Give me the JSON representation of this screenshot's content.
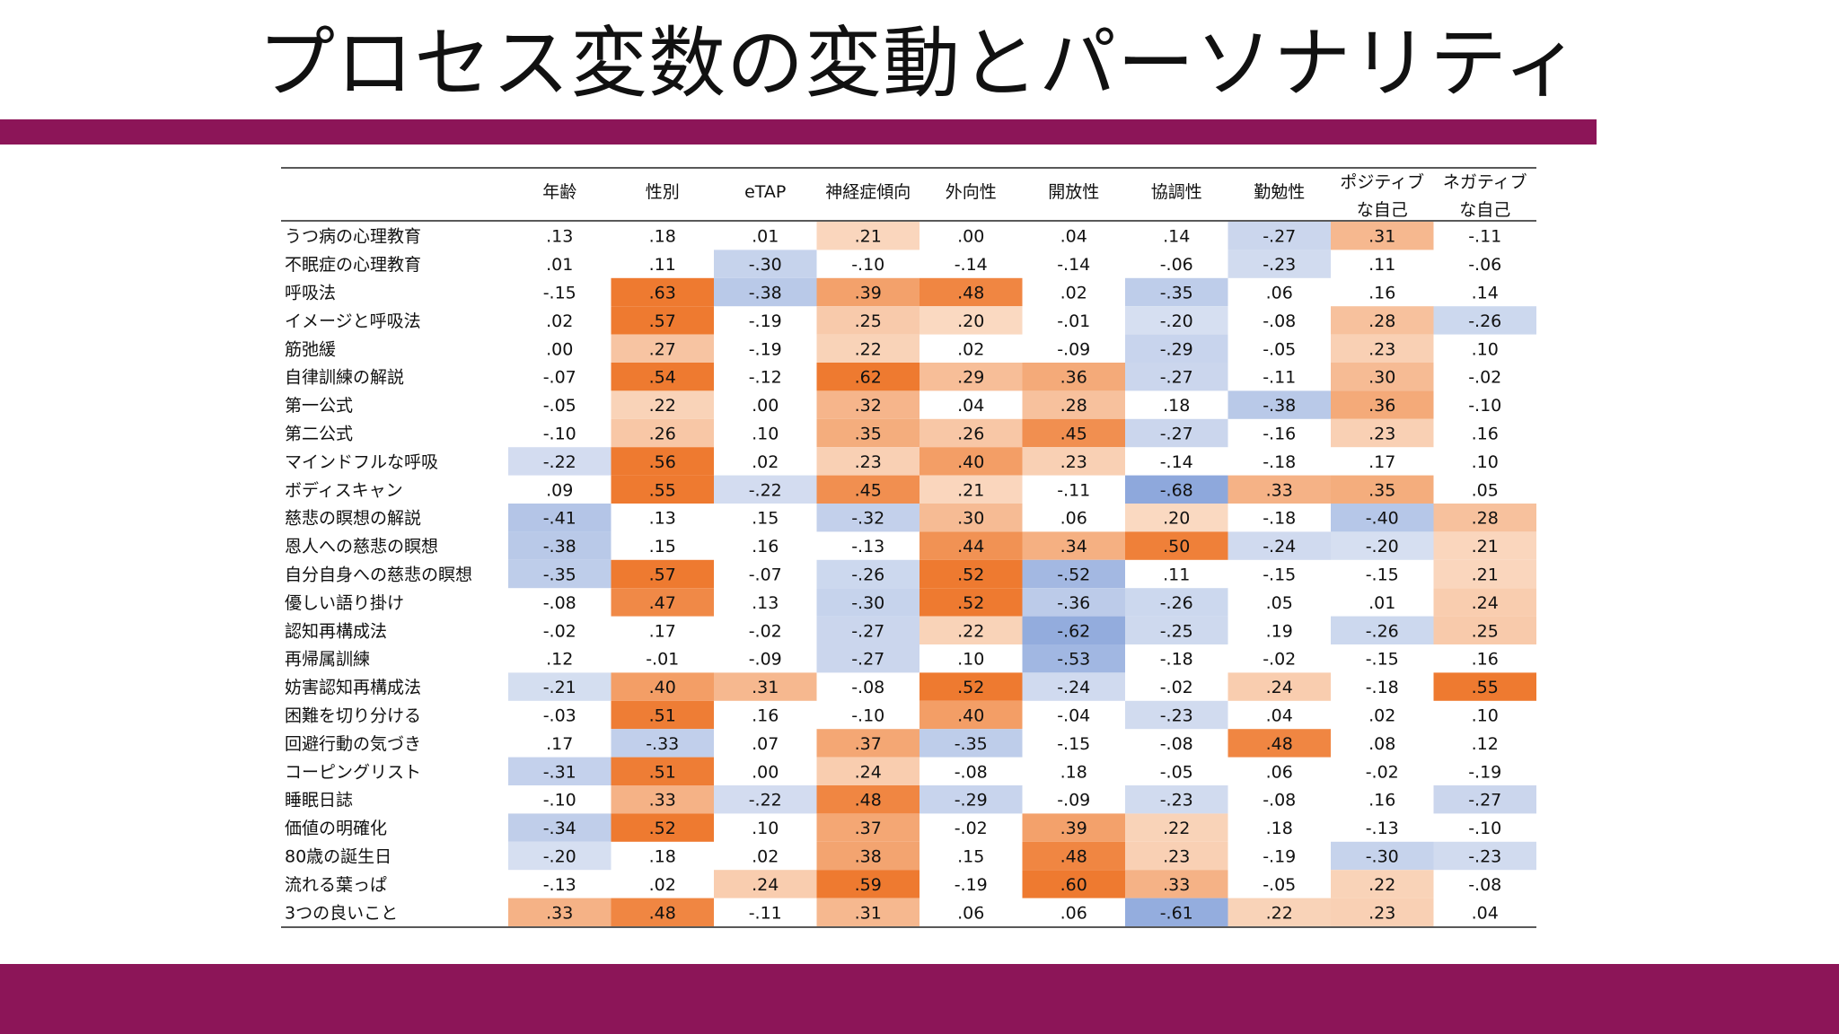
{
  "title": "プロセス変数の変動とパーソナリティ",
  "colors": {
    "accent_bar": "#8c1558",
    "positive": "#ee7a30",
    "negative": "#8ea8dc"
  },
  "chart_data": {
    "type": "table",
    "columns": [
      [
        "年齢"
      ],
      [
        "性別"
      ],
      [
        "eTAP"
      ],
      [
        "神経症傾向"
      ],
      [
        "外向性"
      ],
      [
        "開放性"
      ],
      [
        "協調性"
      ],
      [
        "勤勉性"
      ],
      [
        "ポジティブ",
        "な自己"
      ],
      [
        "ネガティブ",
        "な自己"
      ]
    ],
    "rows": [
      "うつ病の心理教育",
      "不眠症の心理教育",
      "呼吸法",
      "イメージと呼吸法",
      "筋弛緩",
      "自律訓練の解説",
      "第一公式",
      "第二公式",
      "マインドフルな呼吸",
      "ボディスキャン",
      "慈悲の瞑想の解説",
      "恩人への慈悲の瞑想",
      "自分自身への慈悲の瞑想",
      "優しい語り掛け",
      "認知再構成法",
      "再帰属訓練",
      "妨害認知再構成法",
      "困難を切り分ける",
      "回避行動の気づき",
      "コーピングリスト",
      "睡眠日誌",
      "価値の明確化",
      "80歳の誕生日",
      "流れる葉っぱ",
      "3つの良いこと"
    ],
    "values": [
      [
        0.13,
        0.18,
        0.01,
        0.21,
        0.0,
        0.04,
        0.14,
        -0.27,
        0.31,
        -0.11
      ],
      [
        0.01,
        0.11,
        -0.3,
        -0.1,
        -0.14,
        -0.14,
        -0.06,
        -0.23,
        0.11,
        -0.06
      ],
      [
        -0.15,
        0.63,
        -0.38,
        0.39,
        0.48,
        0.02,
        -0.35,
        0.06,
        0.16,
        0.14
      ],
      [
        0.02,
        0.57,
        -0.19,
        0.25,
        0.2,
        -0.01,
        -0.2,
        -0.08,
        0.28,
        -0.26
      ],
      [
        0.0,
        0.27,
        -0.19,
        0.22,
        0.02,
        -0.09,
        -0.29,
        -0.05,
        0.23,
        0.1
      ],
      [
        -0.07,
        0.54,
        -0.12,
        0.62,
        0.29,
        0.36,
        -0.27,
        -0.11,
        0.3,
        -0.02
      ],
      [
        -0.05,
        0.22,
        0.0,
        0.32,
        0.04,
        0.28,
        0.18,
        -0.38,
        0.36,
        -0.1
      ],
      [
        -0.1,
        0.26,
        0.1,
        0.35,
        0.26,
        0.45,
        -0.27,
        -0.16,
        0.23,
        0.16
      ],
      [
        -0.22,
        0.56,
        0.02,
        0.23,
        0.4,
        0.23,
        -0.14,
        -0.18,
        0.17,
        0.1
      ],
      [
        0.09,
        0.55,
        -0.22,
        0.45,
        0.21,
        -0.11,
        -0.68,
        0.33,
        0.35,
        0.05
      ],
      [
        -0.41,
        0.13,
        0.15,
        -0.32,
        0.3,
        0.06,
        0.2,
        -0.18,
        -0.4,
        0.28
      ],
      [
        -0.38,
        0.15,
        0.16,
        -0.13,
        0.44,
        0.34,
        0.5,
        -0.24,
        -0.2,
        0.21
      ],
      [
        -0.35,
        0.57,
        -0.07,
        -0.26,
        0.52,
        -0.52,
        0.11,
        -0.15,
        -0.15,
        0.21
      ],
      [
        -0.08,
        0.47,
        0.13,
        -0.3,
        0.52,
        -0.36,
        -0.26,
        0.05,
        0.01,
        0.24
      ],
      [
        -0.02,
        0.17,
        -0.02,
        -0.27,
        0.22,
        -0.62,
        -0.25,
        0.19,
        -0.26,
        0.25
      ],
      [
        0.12,
        -0.01,
        -0.09,
        -0.27,
        0.1,
        -0.53,
        -0.18,
        -0.02,
        -0.15,
        0.16
      ],
      [
        -0.21,
        0.4,
        0.31,
        -0.08,
        0.52,
        -0.24,
        -0.02,
        0.24,
        -0.18,
        0.55
      ],
      [
        -0.03,
        0.51,
        0.16,
        -0.1,
        0.4,
        -0.04,
        -0.23,
        0.04,
        0.02,
        0.1
      ],
      [
        0.17,
        -0.33,
        0.07,
        0.37,
        -0.35,
        -0.15,
        -0.08,
        0.48,
        0.08,
        0.12
      ],
      [
        -0.31,
        0.51,
        0.0,
        0.24,
        -0.08,
        0.18,
        -0.05,
        0.06,
        -0.02,
        -0.19
      ],
      [
        -0.1,
        0.33,
        -0.22,
        0.48,
        -0.29,
        -0.09,
        -0.23,
        -0.08,
        0.16,
        -0.27
      ],
      [
        -0.34,
        0.52,
        0.1,
        0.37,
        -0.02,
        0.39,
        0.22,
        0.18,
        -0.13,
        -0.1
      ],
      [
        -0.2,
        0.18,
        0.02,
        0.38,
        0.15,
        0.48,
        0.23,
        -0.19,
        -0.3,
        -0.23
      ],
      [
        -0.13,
        0.02,
        0.24,
        0.59,
        -0.19,
        0.6,
        0.33,
        -0.05,
        0.22,
        -0.08
      ],
      [
        0.33,
        0.48,
        -0.11,
        0.31,
        0.06,
        0.06,
        -0.61,
        0.22,
        0.23,
        0.04
      ]
    ]
  }
}
